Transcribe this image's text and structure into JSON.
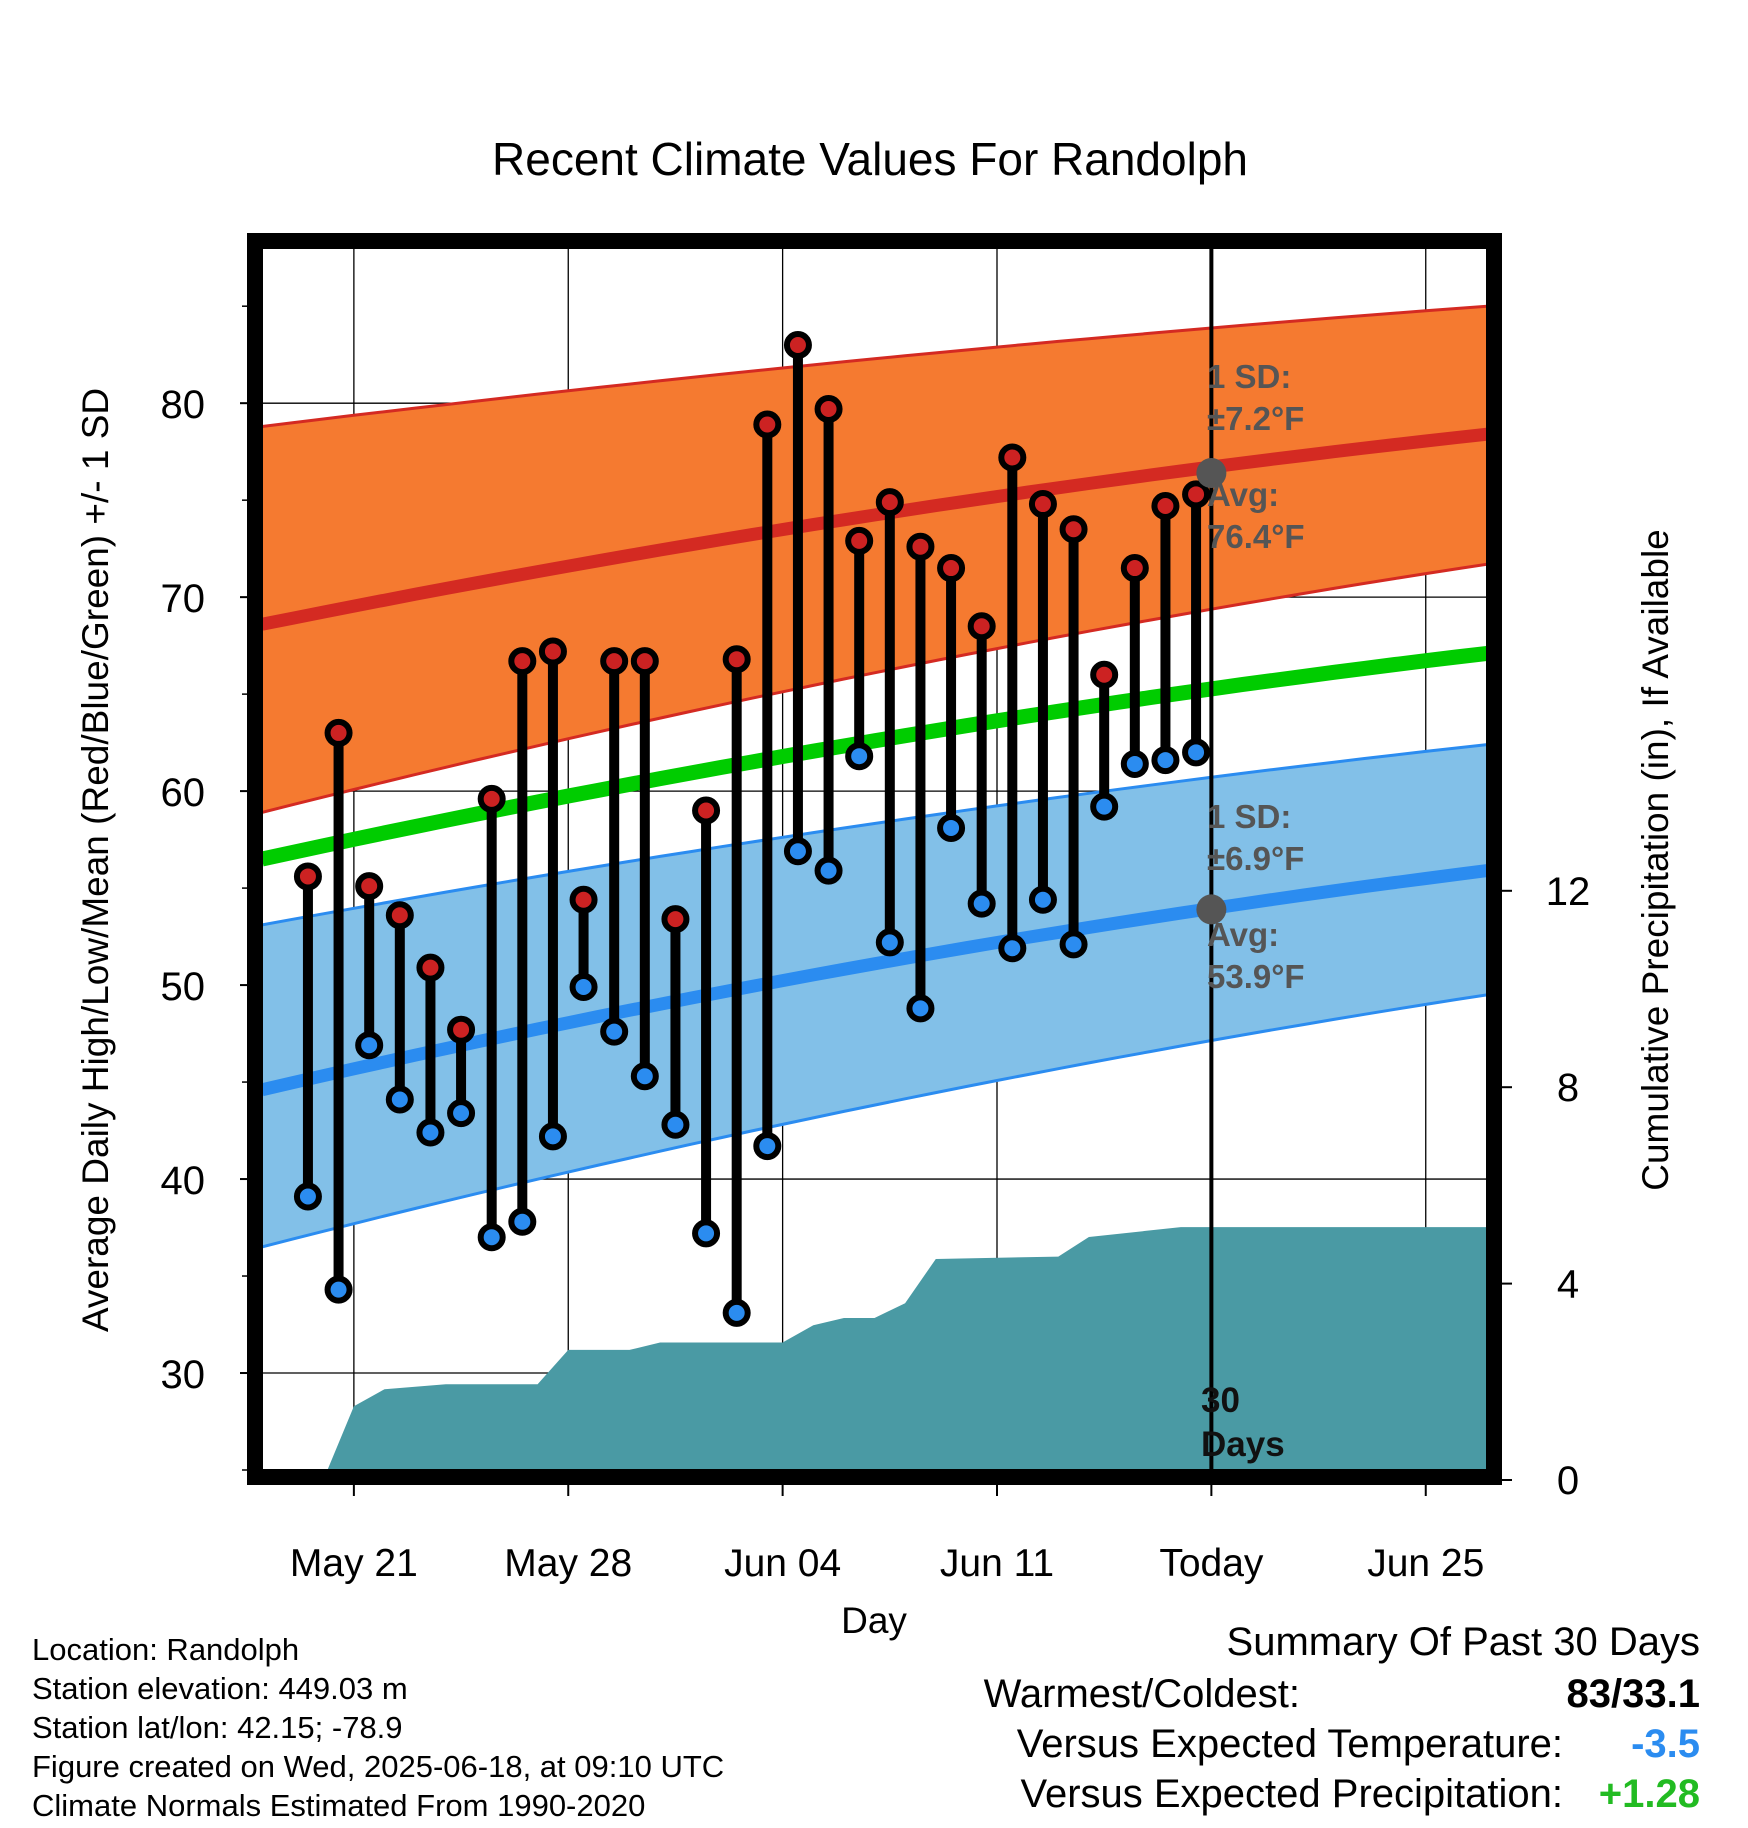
{
  "chart_data": {
    "type": "line",
    "title": "Recent Climate Values For Randolph",
    "xlabel": "Day",
    "ylabel": "Average Daily High/Low/Mean (Red/Blue/Green) +/- 1 SD",
    "y2label": "Cumulative Precipitation (in), If Available",
    "ylim": [
      25,
      88
    ],
    "y2lim": [
      0,
      20
    ],
    "x_tick_labels": [
      "May 21",
      "May 28",
      "Jun 04",
      "Jun 11",
      "Today",
      "Jun 25"
    ],
    "x_tick_days": [
      "2025-05-21",
      "2025-05-28",
      "2025-06-04",
      "2025-06-11",
      "2025-06-18",
      "2025-06-25"
    ],
    "x_range": [
      "2025-05-18",
      "2025-06-27"
    ],
    "y_ticks": [
      30,
      40,
      50,
      60,
      70,
      80
    ],
    "y2_ticks": [
      0,
      4,
      8,
      12
    ],
    "grid": true,
    "colors": {
      "high_band": "#f57a30",
      "high_line": "#d42a22",
      "low_band": "#82c0e8",
      "low_line": "#2b8cf0",
      "mean_line": "#00cc00",
      "precip": "#4a9aa4",
      "marker_high": "#cc2222",
      "marker_low": "#2b8cf0",
      "annotation": "#555555"
    },
    "series": [
      {
        "name": "High",
        "dates": [
          "2025-05-19",
          "2025-05-20",
          "2025-05-21",
          "2025-05-22",
          "2025-05-23",
          "2025-05-24",
          "2025-05-25",
          "2025-05-26",
          "2025-05-27",
          "2025-05-28",
          "2025-05-29",
          "2025-05-30",
          "2025-05-31",
          "2025-06-01",
          "2025-06-02",
          "2025-06-03",
          "2025-06-04",
          "2025-06-05",
          "2025-06-06",
          "2025-06-07",
          "2025-06-08",
          "2025-06-09",
          "2025-06-10",
          "2025-06-11",
          "2025-06-12",
          "2025-06-13",
          "2025-06-14",
          "2025-06-15",
          "2025-06-16",
          "2025-06-17"
        ],
        "values": [
          55.6,
          63.0,
          55.1,
          53.6,
          50.9,
          47.7,
          59.6,
          66.7,
          67.2,
          54.4,
          66.7,
          66.7,
          53.4,
          59.0,
          66.8,
          78.9,
          83.0,
          79.7,
          72.9,
          74.9,
          72.6,
          71.5,
          68.5,
          77.2,
          74.8,
          73.5,
          66.0,
          71.5,
          74.7,
          75.3
        ]
      },
      {
        "name": "Low",
        "dates": [
          "2025-05-19",
          "2025-05-20",
          "2025-05-21",
          "2025-05-22",
          "2025-05-23",
          "2025-05-24",
          "2025-05-25",
          "2025-05-26",
          "2025-05-27",
          "2025-05-28",
          "2025-05-29",
          "2025-05-30",
          "2025-05-31",
          "2025-06-01",
          "2025-06-02",
          "2025-06-03",
          "2025-06-04",
          "2025-06-05",
          "2025-06-06",
          "2025-06-07",
          "2025-06-08",
          "2025-06-09",
          "2025-06-10",
          "2025-06-11",
          "2025-06-12",
          "2025-06-13",
          "2025-06-14",
          "2025-06-15",
          "2025-06-16",
          "2025-06-17"
        ],
        "values": [
          39.1,
          34.3,
          46.9,
          44.1,
          42.4,
          43.4,
          37.0,
          37.8,
          42.2,
          49.9,
          47.6,
          45.3,
          42.8,
          37.2,
          33.1,
          41.7,
          56.9,
          55.9,
          61.8,
          52.2,
          48.8,
          58.1,
          54.2,
          51.9,
          54.4,
          52.1,
          59.2,
          61.4,
          61.6,
          62.0
        ]
      }
    ],
    "normals": {
      "dates": [
        "2025-05-18",
        "2025-06-27"
      ],
      "high_avg": [
        68.6,
        78.4
      ],
      "high_sd_upper": [
        78.8,
        85.0
      ],
      "high_sd_lower": [
        58.9,
        71.7
      ],
      "mean_avg": [
        56.5,
        67.1
      ],
      "low_avg": [
        44.6,
        55.9
      ],
      "low_sd_upper": [
        53.1,
        62.4
      ],
      "low_sd_lower": [
        36.5,
        49.5
      ]
    },
    "precipitation": {
      "dates": [
        "2025-05-20",
        "2025-05-21",
        "2025-05-22",
        "2025-05-24",
        "2025-05-27",
        "2025-05-28",
        "2025-05-30",
        "2025-05-31",
        "2025-06-04",
        "2025-06-05",
        "2025-06-06",
        "2025-06-07",
        "2025-06-08",
        "2025-06-09",
        "2025-06-13",
        "2025-06-14",
        "2025-06-17",
        "2025-06-27"
      ],
      "values": [
        0.0,
        1.5,
        1.85,
        1.95,
        1.95,
        2.65,
        2.65,
        2.8,
        2.8,
        3.15,
        3.3,
        3.3,
        3.6,
        4.5,
        4.55,
        4.95,
        5.15,
        5.15
      ]
    },
    "annotations": {
      "high_sd_label": "1 SD:",
      "high_sd_value": "±7.2°F",
      "high_avg_label": "Avg:",
      "high_avg_value": "76.4°F",
      "low_sd_label": "1 SD:",
      "low_sd_value": "±6.9°F",
      "low_avg_label": "Avg:",
      "low_avg_value": "53.9°F",
      "today_high_avg": 76.4,
      "today_low_avg": 53.9,
      "days_number": "30",
      "days_word": "Days"
    }
  },
  "station": {
    "location": "Location: Randolph",
    "elevation": "Station elevation: 449.03 m",
    "latlon": "Station lat/lon: 42.15; -78.9",
    "created": "Figure created on Wed, 2025-06-18, at 09:10 UTC",
    "normals": "Climate Normals Estimated From 1990-2020"
  },
  "summary": {
    "title": "Summary Of Past 30 Days",
    "warm_cold_label": "Warmest/Coldest:",
    "warm_cold_value": "83/33.1",
    "temp_label": "Versus Expected Temperature:",
    "temp_value": "-3.5",
    "temp_color": "#2b8cf0",
    "precip_label": "Versus Expected Precipitation:",
    "precip_value": "+1.28",
    "precip_color": "#22bb22"
  }
}
